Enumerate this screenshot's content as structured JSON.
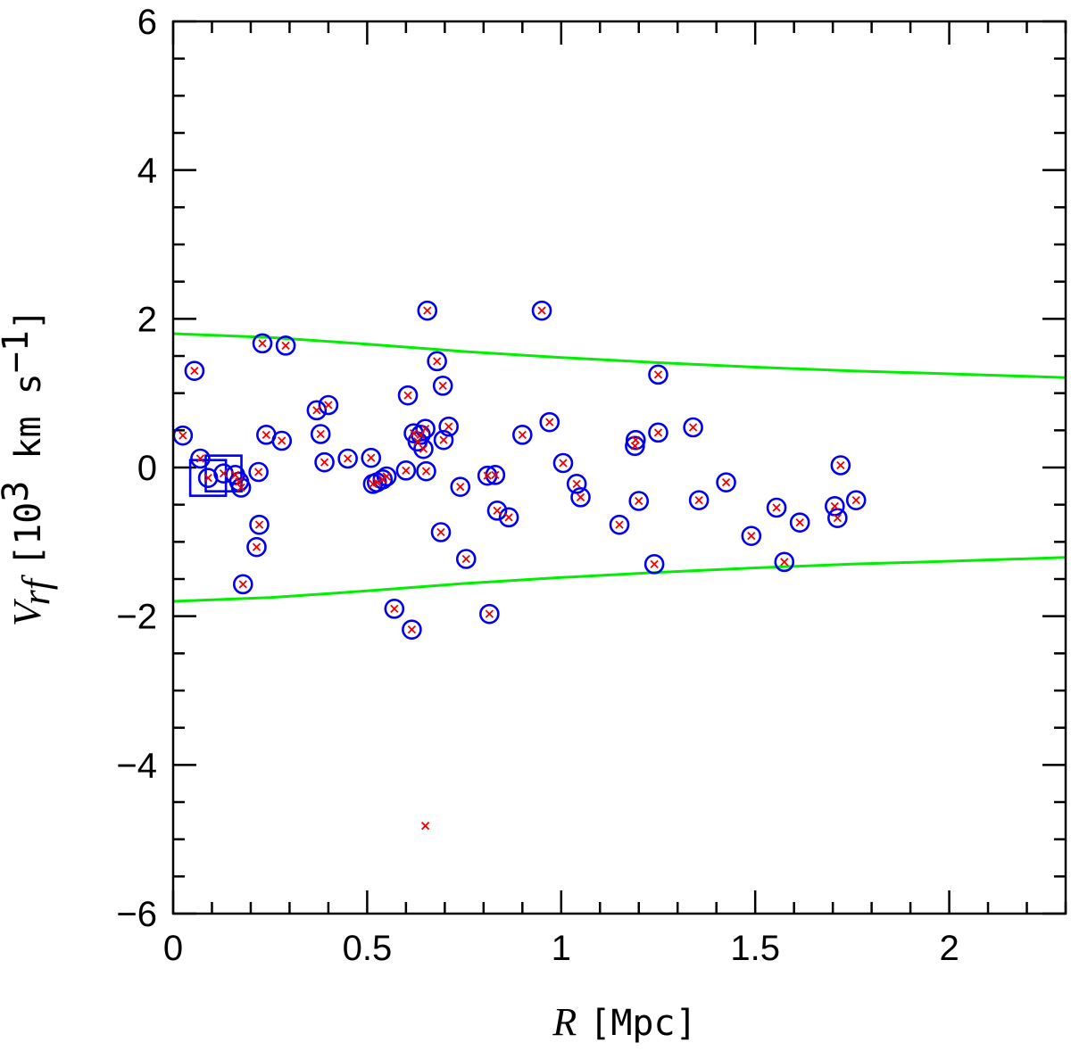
{
  "chart_data": {
    "type": "scatter",
    "xlabel": {
      "symbol": "R",
      "unit": "[Mpc]"
    },
    "ylabel": {
      "symbol": "V",
      "subscript": "rf",
      "unit_prefix": "[10",
      "unit_power": "3",
      "unit_rest": " km s",
      "unit_power2": "−1",
      "unit_close": "]"
    },
    "xlim": [
      0,
      2.3
    ],
    "ylim": [
      -6,
      6
    ],
    "xticks": [
      0,
      0.5,
      1,
      1.5,
      2
    ],
    "xtick_labels": [
      "0",
      "0.5",
      "1",
      "1.5",
      "2"
    ],
    "yticks": [
      -6,
      -4,
      -2,
      0,
      2,
      4,
      6
    ],
    "ytick_labels": [
      "−6",
      "−4",
      "−2",
      "0",
      "2",
      "4",
      "6"
    ],
    "grid": false,
    "colors": {
      "members": "#0000ee",
      "galaxies": "#ee0000",
      "caustic": "#00ee00",
      "axes": "#000000"
    },
    "galaxies": [
      [
        0.025,
        0.43
      ],
      [
        0.055,
        1.3
      ],
      [
        0.07,
        0.12
      ],
      [
        0.09,
        -0.14
      ],
      [
        0.13,
        -0.08
      ],
      [
        0.16,
        -0.1
      ],
      [
        0.17,
        -0.19
      ],
      [
        0.175,
        -0.27
      ],
      [
        0.18,
        -1.57
      ],
      [
        0.215,
        -1.07
      ],
      [
        0.22,
        -0.06
      ],
      [
        0.222,
        -0.77
      ],
      [
        0.23,
        1.67
      ],
      [
        0.24,
        0.44
      ],
      [
        0.28,
        0.36
      ],
      [
        0.29,
        1.64
      ],
      [
        0.37,
        0.77
      ],
      [
        0.38,
        0.45
      ],
      [
        0.39,
        0.07
      ],
      [
        0.4,
        0.84
      ],
      [
        0.45,
        0.12
      ],
      [
        0.51,
        0.13
      ],
      [
        0.515,
        -0.22
      ],
      [
        0.525,
        -0.2
      ],
      [
        0.54,
        -0.16
      ],
      [
        0.55,
        -0.12
      ],
      [
        0.57,
        -1.9
      ],
      [
        0.6,
        -0.04
      ],
      [
        0.605,
        0.97
      ],
      [
        0.615,
        -2.18
      ],
      [
        0.62,
        0.46
      ],
      [
        0.63,
        0.35
      ],
      [
        0.638,
        0.44
      ],
      [
        0.645,
        0.25
      ],
      [
        0.65,
        0.52
      ],
      [
        0.652,
        -0.05
      ],
      [
        0.655,
        2.11
      ],
      [
        0.68,
        1.43
      ],
      [
        0.69,
        -0.87
      ],
      [
        0.695,
        1.1
      ],
      [
        0.697,
        0.37
      ],
      [
        0.71,
        0.55
      ],
      [
        0.74,
        -0.26
      ],
      [
        0.755,
        -1.23
      ],
      [
        0.81,
        -0.11
      ],
      [
        0.815,
        -1.97
      ],
      [
        0.83,
        -0.1
      ],
      [
        0.835,
        -0.58
      ],
      [
        0.865,
        -0.67
      ],
      [
        0.9,
        0.44
      ],
      [
        0.95,
        2.11
      ],
      [
        0.97,
        0.61
      ],
      [
        1.005,
        0.06
      ],
      [
        1.04,
        -0.22
      ],
      [
        1.05,
        -0.4
      ],
      [
        1.15,
        -0.77
      ],
      [
        1.19,
        0.29
      ],
      [
        1.192,
        0.37
      ],
      [
        1.2,
        -0.45
      ],
      [
        1.24,
        -1.3
      ],
      [
        1.25,
        0.47
      ],
      [
        1.25,
        1.25
      ],
      [
        1.34,
        0.54
      ],
      [
        1.355,
        -0.44
      ],
      [
        1.425,
        -0.2
      ],
      [
        1.49,
        -0.92
      ],
      [
        1.555,
        -0.54
      ],
      [
        1.575,
        -1.27
      ],
      [
        1.615,
        -0.74
      ],
      [
        1.705,
        -0.52
      ],
      [
        1.712,
        -0.68
      ],
      [
        1.72,
        0.03
      ],
      [
        1.76,
        -0.44
      ],
      [
        0.65,
        -4.82
      ]
    ],
    "members": [
      [
        0.025,
        0.43
      ],
      [
        0.055,
        1.3
      ],
      [
        0.07,
        0.12
      ],
      [
        0.09,
        -0.14
      ],
      [
        0.13,
        -0.08
      ],
      [
        0.16,
        -0.1
      ],
      [
        0.17,
        -0.19
      ],
      [
        0.175,
        -0.27
      ],
      [
        0.18,
        -1.57
      ],
      [
        0.215,
        -1.07
      ],
      [
        0.22,
        -0.06
      ],
      [
        0.222,
        -0.77
      ],
      [
        0.23,
        1.67
      ],
      [
        0.24,
        0.44
      ],
      [
        0.28,
        0.36
      ],
      [
        0.29,
        1.64
      ],
      [
        0.37,
        0.77
      ],
      [
        0.38,
        0.45
      ],
      [
        0.39,
        0.07
      ],
      [
        0.4,
        0.84
      ],
      [
        0.45,
        0.12
      ],
      [
        0.51,
        0.13
      ],
      [
        0.515,
        -0.22
      ],
      [
        0.525,
        -0.2
      ],
      [
        0.54,
        -0.16
      ],
      [
        0.55,
        -0.12
      ],
      [
        0.57,
        -1.9
      ],
      [
        0.6,
        -0.04
      ],
      [
        0.605,
        0.97
      ],
      [
        0.615,
        -2.18
      ],
      [
        0.62,
        0.46
      ],
      [
        0.63,
        0.35
      ],
      [
        0.638,
        0.44
      ],
      [
        0.645,
        0.25
      ],
      [
        0.65,
        0.52
      ],
      [
        0.652,
        -0.05
      ],
      [
        0.655,
        2.11
      ],
      [
        0.68,
        1.43
      ],
      [
        0.69,
        -0.87
      ],
      [
        0.695,
        1.1
      ],
      [
        0.697,
        0.37
      ],
      [
        0.71,
        0.55
      ],
      [
        0.74,
        -0.26
      ],
      [
        0.755,
        -1.23
      ],
      [
        0.81,
        -0.11
      ],
      [
        0.815,
        -1.97
      ],
      [
        0.83,
        -0.1
      ],
      [
        0.835,
        -0.58
      ],
      [
        0.865,
        -0.67
      ],
      [
        0.9,
        0.44
      ],
      [
        0.95,
        2.11
      ],
      [
        0.97,
        0.61
      ],
      [
        1.005,
        0.06
      ],
      [
        1.04,
        -0.22
      ],
      [
        1.05,
        -0.4
      ],
      [
        1.15,
        -0.77
      ],
      [
        1.19,
        0.29
      ],
      [
        1.192,
        0.37
      ],
      [
        1.2,
        -0.45
      ],
      [
        1.24,
        -1.3
      ],
      [
        1.25,
        0.47
      ],
      [
        1.25,
        1.25
      ],
      [
        1.34,
        0.54
      ],
      [
        1.355,
        -0.44
      ],
      [
        1.425,
        -0.2
      ],
      [
        1.49,
        -0.92
      ],
      [
        1.555,
        -0.54
      ],
      [
        1.575,
        -1.27
      ],
      [
        1.615,
        -0.74
      ],
      [
        1.705,
        -0.52
      ],
      [
        1.712,
        -0.68
      ],
      [
        1.72,
        0.03
      ],
      [
        1.76,
        -0.44
      ]
    ],
    "squares": [
      [
        0.09,
        -0.14
      ],
      [
        0.13,
        -0.08
      ]
    ],
    "caustics": {
      "upper": [
        [
          0,
          1.8
        ],
        [
          0.25,
          1.75
        ],
        [
          0.5,
          1.66
        ],
        [
          0.75,
          1.56
        ],
        [
          1.0,
          1.48
        ],
        [
          1.25,
          1.41
        ],
        [
          1.5,
          1.35
        ],
        [
          1.75,
          1.3
        ],
        [
          2.0,
          1.26
        ],
        [
          2.3,
          1.21
        ]
      ],
      "lower": [
        [
          0,
          -1.8
        ],
        [
          0.25,
          -1.75
        ],
        [
          0.5,
          -1.66
        ],
        [
          0.75,
          -1.56
        ],
        [
          1.0,
          -1.48
        ],
        [
          1.25,
          -1.41
        ],
        [
          1.5,
          -1.35
        ],
        [
          1.75,
          -1.3
        ],
        [
          2.0,
          -1.26
        ],
        [
          2.3,
          -1.21
        ]
      ]
    }
  }
}
